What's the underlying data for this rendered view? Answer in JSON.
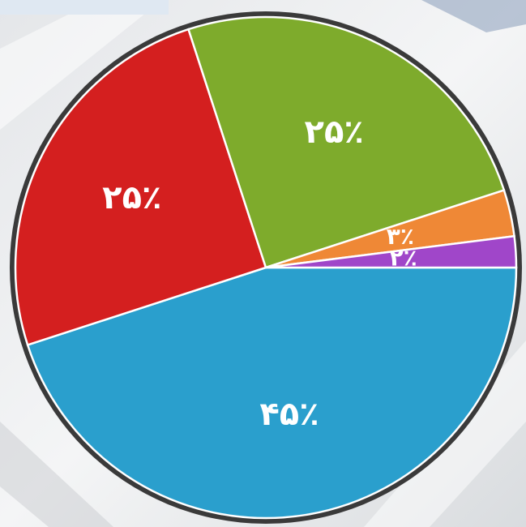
{
  "chart_data": {
    "type": "pie",
    "categories": [
      null,
      null,
      null,
      null,
      null
    ],
    "values": [
      45,
      25,
      25,
      3,
      2
    ],
    "value_labels": [
      "۴۵٪",
      "۲۵٪",
      "۲۵٪",
      "۳٪",
      "۲٪"
    ],
    "colors": [
      "#2a9fcd",
      "#d41f1f",
      "#7eab2c",
      "#ef8836",
      "#a046c9"
    ]
  }
}
